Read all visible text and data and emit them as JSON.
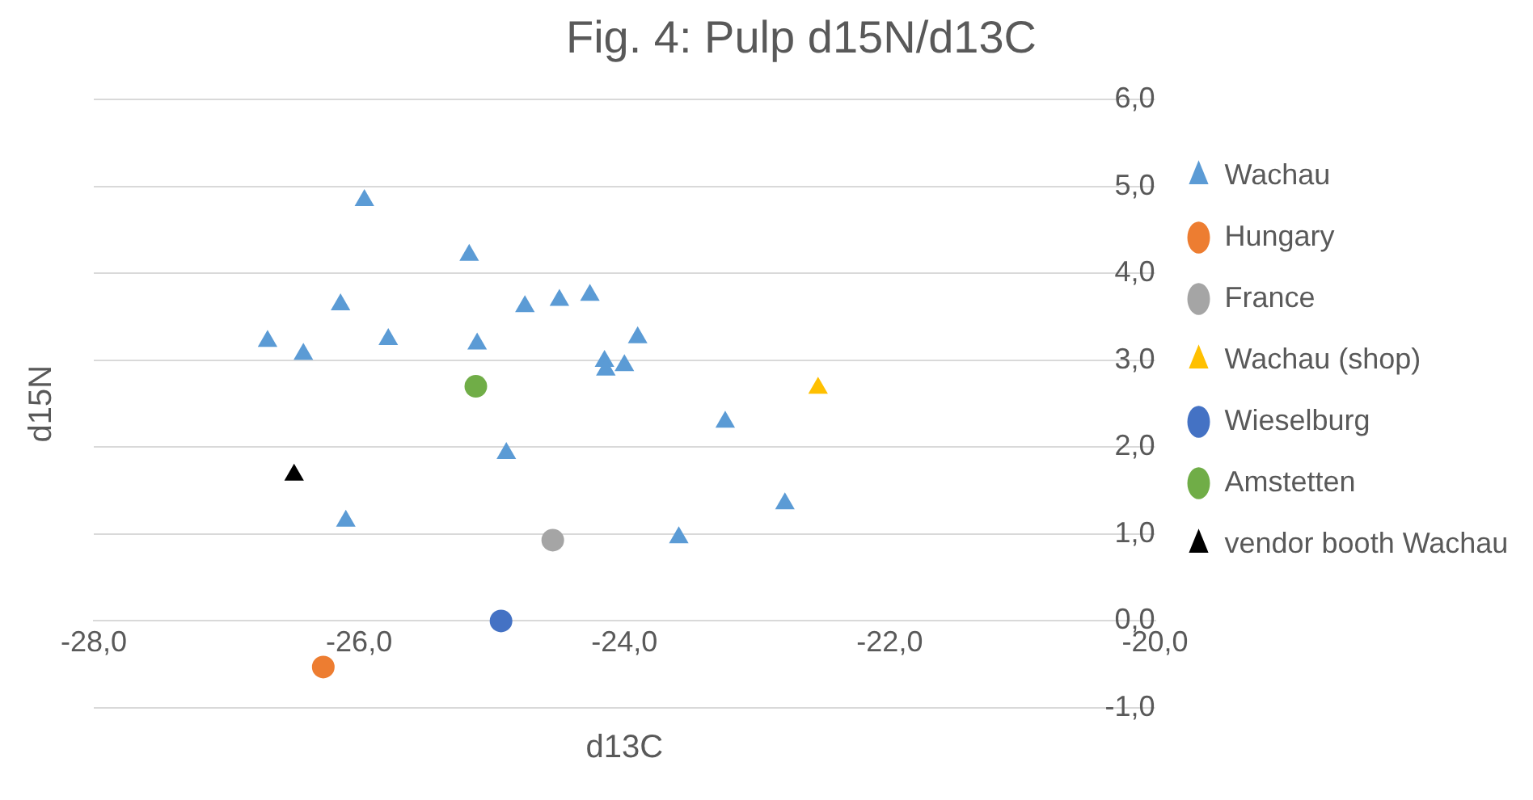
{
  "chart_data": {
    "type": "scatter",
    "title": "Fig. 4: Pulp d15N/d13C",
    "xlabel": "d13C",
    "ylabel": "d15N",
    "xlim": [
      -28,
      -20
    ],
    "ylim": [
      -1,
      6
    ],
    "xticks": [
      {
        "value": -28,
        "label": "-28,0"
      },
      {
        "value": -26,
        "label": "-26,0"
      },
      {
        "value": -24,
        "label": "-24,0"
      },
      {
        "value": -22,
        "label": "-22,0"
      },
      {
        "value": -20,
        "label": "-20,0"
      }
    ],
    "yticks": [
      {
        "value": -1,
        "label": "-1,0"
      },
      {
        "value": 0,
        "label": "0,0"
      },
      {
        "value": 1,
        "label": "1,0"
      },
      {
        "value": 2,
        "label": "2,0"
      },
      {
        "value": 3,
        "label": "3,0"
      },
      {
        "value": 4,
        "label": "4,0"
      },
      {
        "value": 5,
        "label": "5,0"
      },
      {
        "value": 6,
        "label": "6,0"
      }
    ],
    "grid": "y",
    "legend": "right",
    "series": [
      {
        "name": "Wachau",
        "color": "#5b9bd5",
        "marker": "triangle",
        "x": [
          -25.96,
          -25.17,
          -26.14,
          -26.69,
          -26.42,
          -25.78,
          -25.11,
          -24.75,
          -24.49,
          -24.26,
          -23.9,
          -24.15,
          -24.14,
          -24.0,
          -23.24,
          -24.89,
          -26.1,
          -22.79,
          -23.59
        ],
        "values": [
          4.84,
          4.21,
          3.64,
          3.22,
          3.07,
          3.24,
          3.19,
          3.62,
          3.69,
          3.75,
          3.26,
          2.99,
          2.89,
          2.94,
          2.29,
          1.93,
          1.15,
          1.35,
          0.96
        ]
      },
      {
        "name": "Hungary",
        "color": "#ed7d31",
        "marker": "circle",
        "x": [
          -26.27
        ],
        "values": [
          -0.53
        ]
      },
      {
        "name": "France",
        "color": "#a5a5a5",
        "marker": "circle",
        "x": [
          -24.54
        ],
        "values": [
          0.93
        ]
      },
      {
        "name": "Wachau (shop)",
        "color": "#ffc000",
        "marker": "triangle",
        "x": [
          -22.54
        ],
        "values": [
          2.68
        ]
      },
      {
        "name": "Wieselburg",
        "color": "#4472c4",
        "marker": "circle",
        "x": [
          -24.93
        ],
        "values": [
          0.0
        ]
      },
      {
        "name": "Amstetten",
        "color": "#70ad47",
        "marker": "circle",
        "x": [
          -25.12
        ],
        "values": [
          2.7
        ]
      },
      {
        "name": "vendor booth Wachau",
        "color": "#000000",
        "marker": "triangle",
        "x": [
          -26.49
        ],
        "values": [
          1.68
        ]
      }
    ]
  }
}
